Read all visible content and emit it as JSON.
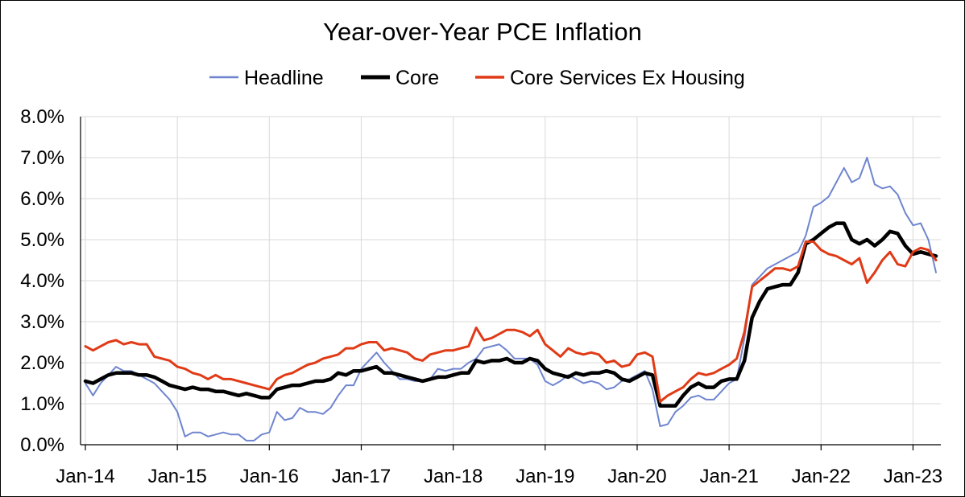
{
  "chart_data": {
    "type": "line",
    "title": "Year-over-Year PCE Inflation",
    "xlabel": "",
    "ylabel": "",
    "ylim": [
      0,
      8
    ],
    "y_ticks": [
      "0.0%",
      "1.0%",
      "2.0%",
      "3.0%",
      "4.0%",
      "5.0%",
      "6.0%",
      "7.0%",
      "8.0%"
    ],
    "y_tick_values": [
      0,
      1,
      2,
      3,
      4,
      5,
      6,
      7,
      8
    ],
    "x_ticks": [
      "Jan-14",
      "Jan-15",
      "Jan-16",
      "Jan-17",
      "Jan-18",
      "Jan-19",
      "Jan-20",
      "Jan-21",
      "Jan-22",
      "Jan-23"
    ],
    "x_tick_index": [
      0,
      12,
      24,
      36,
      48,
      60,
      72,
      84,
      96,
      108
    ],
    "x_start": "Jan-14",
    "legend_position": "top-center",
    "series": [
      {
        "name": "Headline",
        "color": "#6f85cf",
        "width": "thin",
        "values": [
          1.5,
          1.2,
          1.5,
          1.7,
          1.9,
          1.8,
          1.8,
          1.7,
          1.6,
          1.5,
          1.3,
          1.1,
          0.8,
          0.2,
          0.3,
          0.3,
          0.2,
          0.25,
          0.3,
          0.25,
          0.25,
          0.1,
          0.1,
          0.25,
          0.3,
          0.8,
          0.6,
          0.65,
          0.9,
          0.8,
          0.8,
          0.75,
          0.9,
          1.2,
          1.45,
          1.45,
          1.85,
          2.05,
          2.25,
          2.0,
          1.8,
          1.6,
          1.6,
          1.55,
          1.55,
          1.6,
          1.85,
          1.8,
          1.85,
          1.85,
          2.0,
          2.1,
          2.35,
          2.4,
          2.45,
          2.3,
          2.1,
          2.1,
          2.1,
          1.95,
          1.55,
          1.45,
          1.55,
          1.7,
          1.6,
          1.5,
          1.55,
          1.5,
          1.35,
          1.4,
          1.55,
          1.6,
          1.7,
          1.8,
          1.35,
          0.45,
          0.5,
          0.8,
          0.95,
          1.15,
          1.2,
          1.1,
          1.1,
          1.3,
          1.5,
          1.6,
          2.6,
          3.9,
          4.1,
          4.3,
          4.4,
          4.5,
          4.6,
          4.7,
          5.1,
          5.8,
          5.9,
          6.05,
          6.4,
          6.75,
          6.4,
          6.5,
          7.0,
          6.35,
          6.25,
          6.3,
          6.1,
          5.65,
          5.35,
          5.4,
          5.0,
          4.2
        ]
      },
      {
        "name": "Core",
        "color": "#000000",
        "width": "thick",
        "values": [
          1.55,
          1.5,
          1.6,
          1.7,
          1.75,
          1.75,
          1.75,
          1.7,
          1.7,
          1.65,
          1.55,
          1.45,
          1.4,
          1.35,
          1.4,
          1.35,
          1.35,
          1.3,
          1.3,
          1.25,
          1.2,
          1.25,
          1.2,
          1.15,
          1.15,
          1.35,
          1.4,
          1.45,
          1.45,
          1.5,
          1.55,
          1.55,
          1.6,
          1.75,
          1.7,
          1.8,
          1.8,
          1.85,
          1.9,
          1.75,
          1.75,
          1.7,
          1.65,
          1.6,
          1.55,
          1.6,
          1.65,
          1.65,
          1.7,
          1.75,
          1.75,
          2.05,
          2.0,
          2.05,
          2.05,
          2.1,
          2.0,
          2.0,
          2.1,
          2.05,
          1.85,
          1.75,
          1.7,
          1.65,
          1.75,
          1.7,
          1.75,
          1.75,
          1.8,
          1.75,
          1.6,
          1.55,
          1.65,
          1.75,
          1.7,
          0.95,
          0.95,
          0.95,
          1.2,
          1.4,
          1.5,
          1.4,
          1.4,
          1.55,
          1.6,
          1.6,
          2.05,
          3.1,
          3.5,
          3.8,
          3.85,
          3.9,
          3.9,
          4.2,
          4.9,
          5.0,
          5.15,
          5.3,
          5.4,
          5.4,
          5.0,
          4.9,
          5.0,
          4.85,
          5.0,
          5.2,
          5.15,
          4.85,
          4.65,
          4.7,
          4.65,
          4.6
        ]
      },
      {
        "name": "Core Services Ex Housing",
        "color": "#e03a16",
        "width": "medium",
        "values": [
          2.4,
          2.3,
          2.4,
          2.5,
          2.55,
          2.45,
          2.5,
          2.45,
          2.45,
          2.15,
          2.1,
          2.05,
          1.9,
          1.85,
          1.75,
          1.7,
          1.6,
          1.7,
          1.6,
          1.6,
          1.55,
          1.5,
          1.45,
          1.4,
          1.35,
          1.6,
          1.7,
          1.75,
          1.85,
          1.95,
          2.0,
          2.1,
          2.15,
          2.2,
          2.35,
          2.35,
          2.45,
          2.5,
          2.5,
          2.3,
          2.35,
          2.3,
          2.25,
          2.1,
          2.05,
          2.2,
          2.25,
          2.3,
          2.3,
          2.35,
          2.4,
          2.85,
          2.55,
          2.6,
          2.7,
          2.8,
          2.8,
          2.75,
          2.65,
          2.8,
          2.45,
          2.3,
          2.15,
          2.35,
          2.25,
          2.2,
          2.25,
          2.2,
          2.0,
          2.05,
          1.9,
          1.95,
          2.2,
          2.25,
          2.15,
          1.05,
          1.2,
          1.3,
          1.4,
          1.6,
          1.75,
          1.7,
          1.75,
          1.85,
          1.95,
          2.1,
          2.75,
          3.85,
          4.0,
          4.15,
          4.3,
          4.3,
          4.25,
          4.35,
          4.95,
          4.95,
          4.75,
          4.65,
          4.6,
          4.5,
          4.4,
          4.55,
          3.95,
          4.2,
          4.5,
          4.7,
          4.4,
          4.35,
          4.7,
          4.8,
          4.75,
          4.5
        ]
      }
    ]
  }
}
